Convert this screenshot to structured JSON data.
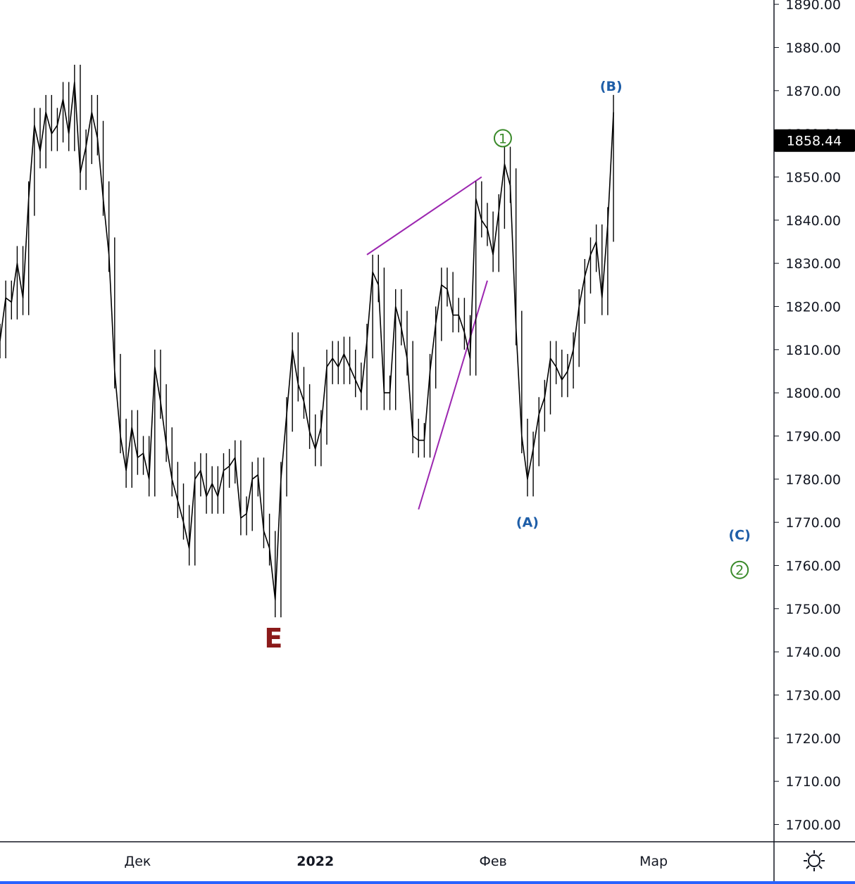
{
  "chart_data": {
    "type": "line",
    "title": "",
    "xlabel": "",
    "ylabel": "",
    "y_axis": {
      "ticks": [
        1890,
        1880,
        1870,
        1860,
        1850,
        1840,
        1830,
        1820,
        1810,
        1800,
        1790,
        1780,
        1770,
        1760,
        1750,
        1740,
        1730,
        1720,
        1710,
        1700
      ],
      "tick_labels": [
        "1890.00",
        "1880.00",
        "1870.00",
        "1860.00",
        "1850.00",
        "1840.00",
        "1830.00",
        "1820.00",
        "1810.00",
        "1800.00",
        "1790.00",
        "1780.00",
        "1770.00",
        "1760.00",
        "1750.00",
        "1740.00",
        "1730.00",
        "1720.00",
        "1710.00",
        "1700.00"
      ],
      "range": [
        1696,
        1891
      ]
    },
    "x_axis": {
      "labels": [
        {
          "text": "Дек",
          "day": 0,
          "bold": false
        },
        {
          "text": "2022",
          "day": 31,
          "bold": true
        },
        {
          "text": "Фев",
          "day": 62,
          "bold": false
        },
        {
          "text": "Мар",
          "day": 90,
          "bold": false
        }
      ],
      "range": [
        -24,
        111
      ]
    },
    "current_price": {
      "value": 1858.44,
      "label": "1858.44"
    },
    "series": [
      {
        "color": "#000000",
        "points": [
          [
            -24,
            1812
          ],
          [
            -23,
            1822
          ],
          [
            -22,
            1821
          ],
          [
            -21,
            1830
          ],
          [
            -20,
            1822
          ],
          [
            -19,
            1845
          ],
          [
            -18,
            1862
          ],
          [
            -17,
            1856
          ],
          [
            -16,
            1865
          ],
          [
            -15,
            1860
          ],
          [
            -14,
            1862
          ],
          [
            -13,
            1868
          ],
          [
            -12,
            1860
          ],
          [
            -11,
            1872
          ],
          [
            -10,
            1851
          ],
          [
            -9,
            1857
          ],
          [
            -8,
            1865
          ],
          [
            -7,
            1859
          ],
          [
            -6,
            1845
          ],
          [
            -5,
            1832
          ],
          [
            -4,
            1805
          ],
          [
            -3,
            1790
          ],
          [
            -2,
            1782
          ],
          [
            -1,
            1792
          ],
          [
            0,
            1785
          ],
          [
            1,
            1786
          ],
          [
            2,
            1780
          ],
          [
            3,
            1806
          ],
          [
            4,
            1798
          ],
          [
            5,
            1788
          ],
          [
            6,
            1780
          ],
          [
            7,
            1775
          ],
          [
            8,
            1770
          ],
          [
            9,
            1764
          ],
          [
            10,
            1780
          ],
          [
            11,
            1782
          ],
          [
            12,
            1776
          ],
          [
            13,
            1779
          ],
          [
            14,
            1776
          ],
          [
            15,
            1782
          ],
          [
            16,
            1783
          ],
          [
            17,
            1785
          ],
          [
            18,
            1771
          ],
          [
            19,
            1772
          ],
          [
            20,
            1780
          ],
          [
            21,
            1781
          ],
          [
            22,
            1768
          ],
          [
            23,
            1764
          ],
          [
            24,
            1752
          ],
          [
            25,
            1780
          ],
          [
            26,
            1795
          ],
          [
            27,
            1810
          ],
          [
            28,
            1802
          ],
          [
            29,
            1798
          ],
          [
            30,
            1791
          ],
          [
            31,
            1787
          ],
          [
            32,
            1792
          ],
          [
            33,
            1806
          ],
          [
            34,
            1808
          ],
          [
            35,
            1806
          ],
          [
            36,
            1809
          ],
          [
            37,
            1806
          ],
          [
            38,
            1803
          ],
          [
            39,
            1800
          ],
          [
            40,
            1812
          ],
          [
            41,
            1828
          ],
          [
            42,
            1825
          ],
          [
            43,
            1800
          ],
          [
            44,
            1800
          ],
          [
            45,
            1820
          ],
          [
            46,
            1815
          ],
          [
            47,
            1808
          ],
          [
            48,
            1790
          ],
          [
            49,
            1789
          ],
          [
            50,
            1789
          ],
          [
            51,
            1805
          ],
          [
            52,
            1816
          ],
          [
            53,
            1825
          ],
          [
            54,
            1824
          ],
          [
            55,
            1818
          ],
          [
            56,
            1818
          ],
          [
            57,
            1814
          ],
          [
            58,
            1808
          ],
          [
            59,
            1845
          ],
          [
            60,
            1840
          ],
          [
            61,
            1838
          ],
          [
            62,
            1832
          ],
          [
            63,
            1842
          ],
          [
            64,
            1853
          ],
          [
            65,
            1848
          ],
          [
            66,
            1815
          ],
          [
            67,
            1790
          ],
          [
            68,
            1780
          ],
          [
            69,
            1787
          ],
          [
            70,
            1795
          ],
          [
            71,
            1799
          ],
          [
            72,
            1808
          ],
          [
            73,
            1806
          ],
          [
            74,
            1803
          ],
          [
            75,
            1805
          ],
          [
            76,
            1810
          ],
          [
            77,
            1820
          ],
          [
            78,
            1827
          ],
          [
            79,
            1832
          ],
          [
            80,
            1835
          ],
          [
            81,
            1822
          ],
          [
            82,
            1839
          ],
          [
            83,
            1865
          ]
        ]
      }
    ],
    "annotations": [
      {
        "text": "(B)",
        "day": 82.6,
        "price": 1870,
        "style": "wave-blue"
      },
      {
        "text": "(A)",
        "day": 68,
        "price": 1769,
        "style": "wave-blue"
      },
      {
        "text": "(C)",
        "day": 105,
        "price": 1766,
        "style": "wave-blue"
      },
      {
        "text": "1",
        "day": 63.7,
        "price": 1858,
        "style": "wave-green-circled"
      },
      {
        "text": "2",
        "day": 105,
        "price": 1758,
        "style": "wave-green-circled"
      },
      {
        "text": "E",
        "day": 23.7,
        "price": 1741,
        "style": "wave-E"
      }
    ],
    "trendlines": [
      {
        "color": "#9c27b0",
        "from": [
          40,
          1832
        ],
        "to": [
          60,
          1850
        ]
      },
      {
        "color": "#9c27b0",
        "from": [
          49,
          1773
        ],
        "to": [
          61,
          1826
        ]
      }
    ]
  },
  "ui": {
    "settings_icon": "sun-gear-icon"
  }
}
